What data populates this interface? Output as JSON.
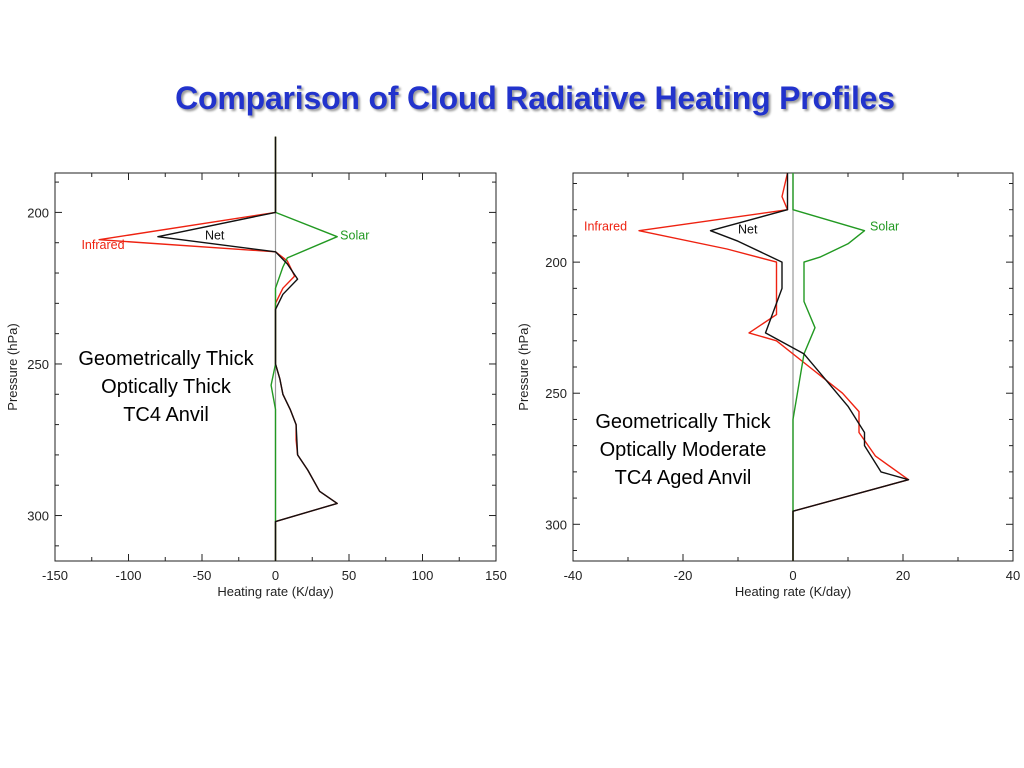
{
  "title": "Comparison of Cloud Radiative Heating Profiles",
  "colors": {
    "title": "#2233cc",
    "Infrared": "#ee2211",
    "Solar": "#229922",
    "Net": "#111111",
    "zero_line": "#999999"
  },
  "chart_data": [
    {
      "type": "line",
      "title": "",
      "xlabel": "Heating rate (K/day)",
      "ylabel": "Pressure (hPa)",
      "xlim": [
        -150,
        150
      ],
      "ylim": [
        187,
        315
      ],
      "y_inverted": true,
      "xticks": [
        -150,
        -100,
        -50,
        0,
        50,
        100,
        150
      ],
      "yticks": [
        200,
        250,
        300
      ],
      "annotation": [
        "Geometrically Thick",
        "Optically Thick",
        "TC4 Anvil"
      ],
      "series": [
        {
          "name": "Infrared",
          "color": "#ee2211",
          "points": [
            [
              0,
              175
            ],
            [
              0,
              200
            ],
            [
              -120,
              209
            ],
            [
              0,
              213
            ],
            [
              8,
              216
            ],
            [
              13,
              221
            ],
            [
              5,
              225
            ],
            [
              0,
              230
            ],
            [
              0,
              240
            ],
            [
              0,
              250
            ],
            [
              3,
              255
            ],
            [
              5,
              260
            ],
            [
              10,
              265
            ],
            [
              14,
              270
            ],
            [
              14,
              275
            ],
            [
              15,
              280
            ],
            [
              22,
              285
            ],
            [
              30,
              292
            ],
            [
              42,
              296
            ],
            [
              0,
              302
            ],
            [
              0,
              310
            ],
            [
              0,
              315
            ]
          ]
        },
        {
          "name": "Solar",
          "color": "#229922",
          "points": [
            [
              0,
              175
            ],
            [
              0,
              200
            ],
            [
              42,
              208
            ],
            [
              8,
              215
            ],
            [
              5,
              218
            ],
            [
              0,
              225
            ],
            [
              0,
              230
            ],
            [
              0,
              250
            ],
            [
              -3,
              257
            ],
            [
              0,
              265
            ],
            [
              0,
              300
            ],
            [
              0,
              315
            ]
          ]
        },
        {
          "name": "Net",
          "color": "#111111",
          "points": [
            [
              0,
              175
            ],
            [
              0,
              200
            ],
            [
              -80,
              208
            ],
            [
              0,
              213
            ],
            [
              8,
              217
            ],
            [
              15,
              222
            ],
            [
              5,
              227
            ],
            [
              0,
              232
            ],
            [
              0,
              250
            ],
            [
              3,
              255
            ],
            [
              5,
              260
            ],
            [
              10,
              265
            ],
            [
              14,
              270
            ],
            [
              15,
              280
            ],
            [
              22,
              285
            ],
            [
              30,
              292
            ],
            [
              42,
              296
            ],
            [
              0,
              302
            ],
            [
              0,
              315
            ]
          ]
        }
      ],
      "series_labels": [
        {
          "text": "Infrared",
          "x": -132,
          "y": 212,
          "color": "#ee2211"
        },
        {
          "text": "Solar",
          "x": 44,
          "y": 209,
          "color": "#229922"
        },
        {
          "text": "Net",
          "x": -48,
          "y": 209,
          "color": "#111111"
        }
      ]
    },
    {
      "type": "line",
      "title": "",
      "xlabel": "Heating rate (K/day)",
      "ylabel": "Pressure (hPa)",
      "xlim": [
        -40,
        40
      ],
      "ylim": [
        166,
        314
      ],
      "y_inverted": true,
      "xticks": [
        -40,
        -20,
        0,
        20,
        40
      ],
      "yticks": [
        200,
        250,
        300
      ],
      "annotation": [
        "Geometrically Thick",
        "Optically Moderate",
        "TC4 Aged Anvil"
      ],
      "series": [
        {
          "name": "Infrared",
          "color": "#ee2211",
          "points": [
            [
              -1,
              166
            ],
            [
              -2,
              175
            ],
            [
              -1,
              180
            ],
            [
              -28,
              188
            ],
            [
              -12,
              195
            ],
            [
              -3,
              200
            ],
            [
              -3,
              210
            ],
            [
              -3,
              220
            ],
            [
              -8,
              227
            ],
            [
              -3,
              230
            ],
            [
              3,
              240
            ],
            [
              6,
              245
            ],
            [
              9,
              250
            ],
            [
              12,
              257
            ],
            [
              12,
              265
            ],
            [
              15,
              274
            ],
            [
              21,
              283
            ],
            [
              0,
              295
            ],
            [
              0,
              314
            ]
          ]
        },
        {
          "name": "Solar",
          "color": "#229922",
          "points": [
            [
              0,
              166
            ],
            [
              0,
              180
            ],
            [
              13,
              188
            ],
            [
              10,
              193
            ],
            [
              5,
              198
            ],
            [
              2,
              200
            ],
            [
              2,
              215
            ],
            [
              4,
              225
            ],
            [
              2,
              235
            ],
            [
              0,
              260
            ],
            [
              0,
              314
            ]
          ]
        },
        {
          "name": "Net",
          "color": "#111111",
          "points": [
            [
              -1,
              166
            ],
            [
              -1,
              180
            ],
            [
              -15,
              188
            ],
            [
              -10,
              192
            ],
            [
              -2,
              200
            ],
            [
              -2,
              210
            ],
            [
              -5,
              227
            ],
            [
              2,
              235
            ],
            [
              6,
              245
            ],
            [
              10,
              255
            ],
            [
              13,
              265
            ],
            [
              13,
              270
            ],
            [
              16,
              280
            ],
            [
              21,
              283
            ],
            [
              0,
              295
            ],
            [
              0,
              314
            ]
          ]
        }
      ],
      "series_labels": [
        {
          "text": "Infrared",
          "x": -38,
          "y": 188,
          "color": "#ee2211"
        },
        {
          "text": "Solar",
          "x": 14,
          "y": 188,
          "color": "#229922"
        },
        {
          "text": "Net",
          "x": -10,
          "y": 189,
          "color": "#111111"
        }
      ]
    }
  ]
}
